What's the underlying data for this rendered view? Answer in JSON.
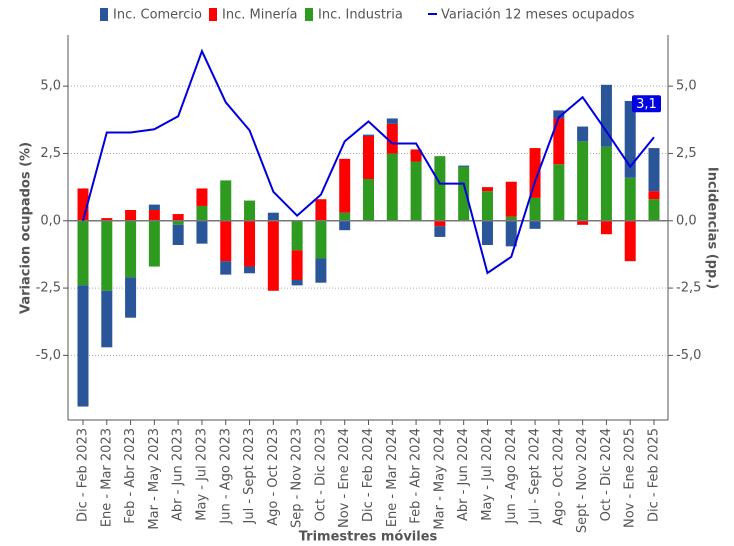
{
  "chart_data": {
    "type": "bar",
    "xlabel": "Trimestres móviles",
    "ylabel": "Variacion ocupados (%)",
    "y2label": "Incidencias (pp.)",
    "categories": [
      "Dic - Feb 2023",
      "Ene - Mar 2023",
      "Feb - Abr 2023",
      "Mar - May 2023",
      "Abr - Jun 2023",
      "May - Jul 2023",
      "Jun - Ago 2023",
      "Jul - Sept 2023",
      "Ago - Oct 2023",
      "Sep - Nov 2023",
      "Oct - Dic 2023",
      "Nov - Ene 2024",
      "Dic - Feb 2024",
      "Ene - Mar 2024",
      "Feb - Abr 2024",
      "Mar - May 2024",
      "Abr - Jun 2024",
      "May - Jul 2024",
      "Jun - Ago 2024",
      "Jul - Sept 2024",
      "Ago - Oct 2024",
      "Sept - Nov 2024",
      "Oct - Dic 2024",
      "Nov - Ene 2025",
      "Dic - Feb 2025"
    ],
    "series": [
      {
        "name": "Inc. Comercio",
        "color": "#2a5599",
        "axis": "y2",
        "type": "bar",
        "values": [
          -4.5,
          -2.1,
          -1.5,
          0.2,
          -0.75,
          -0.85,
          -0.5,
          -0.25,
          0.3,
          -0.2,
          -0.9,
          -0.35,
          0.05,
          0.2,
          0,
          -0.4,
          0.05,
          -0.9,
          -0.95,
          -0.3,
          0.3,
          0.55,
          2.3,
          2.85,
          1.6
        ]
      },
      {
        "name": "Inc. Minería",
        "color": "#ff0000",
        "axis": "y2",
        "type": "bar",
        "values": [
          1.2,
          0.1,
          0.4,
          0.4,
          0.25,
          0.65,
          -1.5,
          -1.7,
          -2.6,
          -1.1,
          0.8,
          2.0,
          1.6,
          1.1,
          0.45,
          -0.2,
          0,
          0.15,
          1.3,
          1.85,
          1.7,
          -0.15,
          -0.5,
          -1.5,
          0.3
        ]
      },
      {
        "name": "Inc. Industria",
        "color": "#2e9a1f",
        "axis": "y2",
        "type": "bar",
        "values": [
          -2.4,
          -2.6,
          -2.1,
          -1.7,
          -0.15,
          0.55,
          1.5,
          0.75,
          0,
          -1.1,
          -1.4,
          0.3,
          1.55,
          2.5,
          2.2,
          2.4,
          2.0,
          1.1,
          0.15,
          0.85,
          2.1,
          2.95,
          2.75,
          1.6,
          0.8
        ]
      },
      {
        "name": "Variación 12 meses ocupados",
        "color": "#0000e0",
        "type": "line",
        "values": [
          0.0,
          3.28,
          3.28,
          3.4,
          3.88,
          6.3,
          4.4,
          3.36,
          1.08,
          0.19,
          0.97,
          2.95,
          3.69,
          2.87,
          2.87,
          1.38,
          1.38,
          -1.94,
          -1.34,
          1.46,
          3.84,
          4.59,
          3.32,
          2.01,
          3.1
        ],
        "value_labels": [
          null,
          null,
          null,
          null,
          null,
          null,
          null,
          null,
          null,
          null,
          null,
          null,
          null,
          null,
          null,
          null,
          null,
          null,
          null,
          null,
          null,
          null,
          null,
          null,
          "3,1"
        ]
      }
    ],
    "ylim": [
      -7.4,
      6.9
    ],
    "yticks": [
      {
        "value": -5,
        "label": "-5,0"
      },
      {
        "value": -2.5,
        "label": "-2,5"
      },
      {
        "value": 0,
        "label": "0,0"
      },
      {
        "value": 2.5,
        "label": "2,5"
      },
      {
        "value": 5,
        "label": "5,0"
      }
    ],
    "y2lim": [
      -7.4,
      6.9
    ],
    "y2ticks": [
      {
        "value": -5,
        "label": "-5,0"
      },
      {
        "value": -2.5,
        "label": "-2,5"
      },
      {
        "value": 0,
        "label": "0,0"
      },
      {
        "value": 2.5,
        "label": "2,5"
      },
      {
        "value": 5,
        "label": "5,0"
      }
    ],
    "grid": true,
    "legend": "top"
  }
}
